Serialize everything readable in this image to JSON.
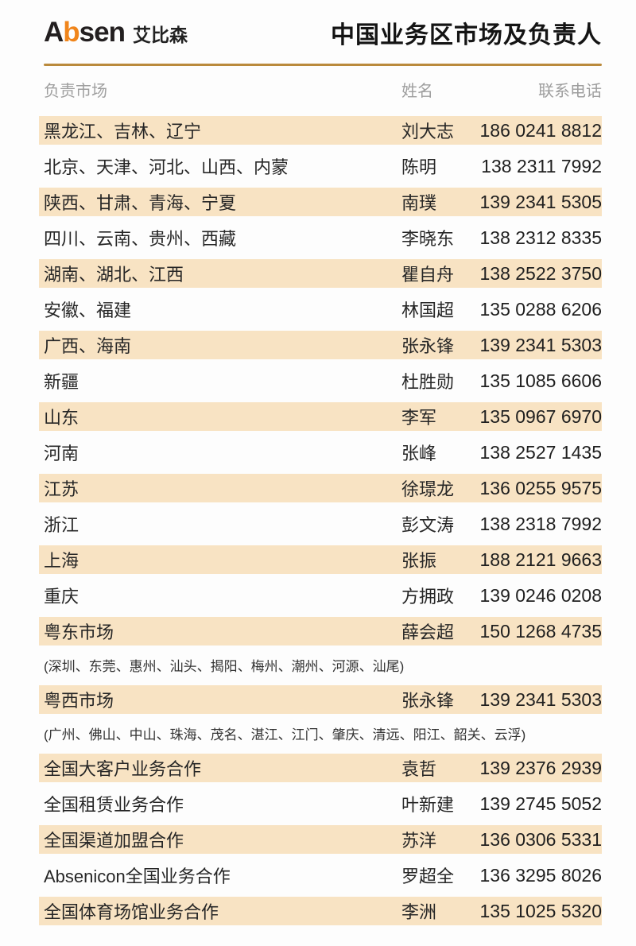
{
  "header": {
    "logo_latin_a": "A",
    "logo_latin_b": "b",
    "logo_latin_rest": "sen",
    "logo_cn": "艾比森",
    "title": "中国业务区市场及负责人"
  },
  "columns": {
    "market": "负责市场",
    "name": "姓名",
    "phone": "联系电话"
  },
  "table": {
    "rows": [
      {
        "market": "黑龙江、吉林、辽宁",
        "name": "刘大志",
        "phone": "186 0241 8812",
        "highlight": true
      },
      {
        "market": "北京、天津、河北、山西、内蒙",
        "name": "陈明",
        "phone": "138 2311 7992",
        "highlight": false
      },
      {
        "market": "陕西、甘肃、青海、宁夏",
        "name": "南璞",
        "phone": "139 2341 5305",
        "highlight": true
      },
      {
        "market": "四川、云南、贵州、西藏",
        "name": "李晓东",
        "phone": "138 2312 8335",
        "highlight": false
      },
      {
        "market": "湖南、湖北、江西",
        "name": "瞿自舟",
        "phone": "138 2522 3750",
        "highlight": true
      },
      {
        "market": "安徽、福建",
        "name": "林国超",
        "phone": "135 0288 6206",
        "highlight": false
      },
      {
        "market": "广西、海南",
        "name": "张永锋",
        "phone": "139 2341 5303",
        "highlight": true
      },
      {
        "market": "新疆",
        "name": "杜胜勋",
        "phone": "135 1085 6606",
        "highlight": false
      },
      {
        "market": "山东",
        "name": "李军",
        "phone": "135 0967 6970",
        "highlight": true
      },
      {
        "market": "河南",
        "name": "张峰",
        "phone": "138 2527 1435",
        "highlight": false
      },
      {
        "market": "江苏",
        "name": "徐璟龙",
        "phone": "136 0255 9575",
        "highlight": true
      },
      {
        "market": "浙江",
        "name": "彭文涛",
        "phone": "138 2318 7992",
        "highlight": false
      },
      {
        "market": "上海",
        "name": "张振",
        "phone": "188 2121 9663",
        "highlight": true
      },
      {
        "market": "重庆",
        "name": "方拥政",
        "phone": "139 0246 0208",
        "highlight": false
      },
      {
        "market": "粤东市场",
        "name": "薛会超",
        "phone": "150 1268 4735",
        "highlight": true,
        "note": "(深圳、东莞、惠州、汕头、揭阳、梅州、潮州、河源、汕尾)"
      },
      {
        "market": "粤西市场",
        "name": "张永锋",
        "phone": "139 2341 5303",
        "highlight": true,
        "note": "(广州、佛山、中山、珠海、茂名、湛江、江门、肇庆、清远、阳江、韶关、云浮)"
      },
      {
        "market": "全国大客户业务合作",
        "name": "袁哲",
        "phone": "139 2376 2939",
        "highlight": true
      },
      {
        "market": "全国租赁业务合作",
        "name": "叶新建",
        "phone": "139 2745 5052",
        "highlight": false
      },
      {
        "market": "全国渠道加盟合作",
        "name": "苏洋",
        "phone": "136 0306 5331",
        "highlight": true
      },
      {
        "market": "Absenicon全国业务合作",
        "name": "罗超全",
        "phone": "136 3295 8026",
        "highlight": false
      },
      {
        "market": "全国体育场馆业务合作",
        "name": "李洲",
        "phone": "135 1025 5320",
        "highlight": true
      }
    ]
  },
  "colors": {
    "accent_orange": "#f0851b",
    "rule_gold": "#ba8a3c",
    "row_highlight": "#f8e3c3"
  }
}
